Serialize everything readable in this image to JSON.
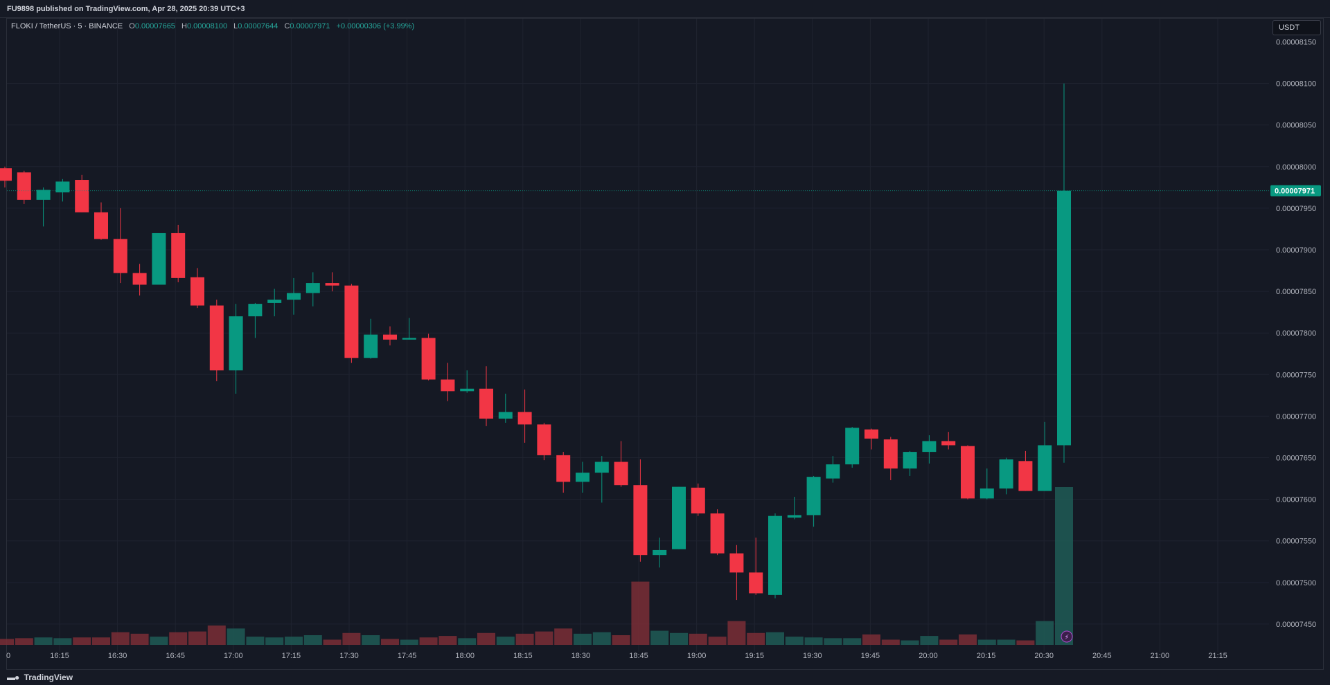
{
  "header": {
    "published_text": "FU9898 published on TradingView.com, Apr 28, 2025 20:39 UTC+3"
  },
  "legend": {
    "symbol": "FLOKI / TetherUS · 5 · BINANCE",
    "open_label": "O",
    "open": "0.00007665",
    "high_label": "H",
    "high": "0.00008100",
    "low_label": "L",
    "low": "0.00007644",
    "close_label": "C",
    "close": "0.00007971",
    "change": "+0.00000306 (+3.99%)"
  },
  "currency_button": "USDT",
  "footer": {
    "brand": "TradingView",
    "logo_icon": "tradingview-logo-icon"
  },
  "colors": {
    "up": "#089981",
    "down": "#f23645",
    "background": "#151924",
    "grid": "#1f2330",
    "text": "#b2b5be"
  },
  "chart_data": {
    "type": "candlestick",
    "symbol": "FLOKI / TetherUS",
    "interval": "5",
    "exchange": "BINANCE",
    "quote_currency": "USDT",
    "last_price": 7.971e-05,
    "last_price_label": "0.00007971",
    "x_tick_labels": [
      "16:15",
      "16:30",
      "16:45",
      "17:00",
      "17:15",
      "17:30",
      "17:45",
      "18:00",
      "18:15",
      "18:30",
      "18:45",
      "19:00",
      "19:15",
      "19:30",
      "19:45",
      "20:00",
      "20:15",
      "20:30",
      "20:45",
      "21:00",
      "21:15"
    ],
    "left_edge_tick_label": "0",
    "y_tick_labels": [
      "0.00007450",
      "0.00007500",
      "0.00007550",
      "0.00007600",
      "0.00007650",
      "0.00007700",
      "0.00007750",
      "0.00007800",
      "0.00007850",
      "0.00007900",
      "0.00007950",
      "0.00008000",
      "0.00008050",
      "0.00008100"
    ],
    "y_top_partial_label": "0.00008150",
    "ylim": [
      7.4175e-05,
      8.1612e-05
    ],
    "grid": true,
    "price_scale_position": "right",
    "candles": [
      {
        "t": "16:05",
        "o": 7.998e-05,
        "h": 8e-05,
        "l": 7.975e-05,
        "c": 7.983e-05
      },
      {
        "t": "16:10",
        "o": 7.993e-05,
        "h": 7.995e-05,
        "l": 7.955e-05,
        "c": 7.96e-05
      },
      {
        "t": "16:15",
        "o": 7.96e-05,
        "h": 7.975e-05,
        "l": 7.928e-05,
        "c": 7.972e-05
      },
      {
        "t": "16:20",
        "o": 7.969e-05,
        "h": 7.985e-05,
        "l": 7.958e-05,
        "c": 7.982e-05
      },
      {
        "t": "16:25",
        "o": 7.984e-05,
        "h": 7.99e-05,
        "l": 7.945e-05,
        "c": 7.945e-05
      },
      {
        "t": "16:30",
        "o": 7.945e-05,
        "h": 7.957e-05,
        "l": 7.912e-05,
        "c": 7.913e-05
      },
      {
        "t": "16:35",
        "o": 7.913e-05,
        "h": 7.95e-05,
        "l": 7.86e-05,
        "c": 7.872e-05
      },
      {
        "t": "16:40",
        "o": 7.872e-05,
        "h": 7.883e-05,
        "l": 7.845e-05,
        "c": 7.858e-05
      },
      {
        "t": "16:45",
        "o": 7.858e-05,
        "h": 7.92e-05,
        "l": 7.858e-05,
        "c": 7.92e-05
      },
      {
        "t": "16:50",
        "o": 7.92e-05,
        "h": 7.93e-05,
        "l": 7.861e-05,
        "c": 7.866e-05
      },
      {
        "t": "16:55",
        "o": 7.867e-05,
        "h": 7.878e-05,
        "l": 7.83e-05,
        "c": 7.833e-05
      },
      {
        "t": "17:00",
        "o": 7.833e-05,
        "h": 7.84e-05,
        "l": 7.742e-05,
        "c": 7.755e-05
      },
      {
        "t": "17:05",
        "o": 7.755e-05,
        "h": 7.835e-05,
        "l": 7.727e-05,
        "c": 7.82e-05
      },
      {
        "t": "17:10",
        "o": 7.82e-05,
        "h": 7.836e-05,
        "l": 7.794e-05,
        "c": 7.835e-05
      },
      {
        "t": "17:15",
        "o": 7.836e-05,
        "h": 7.853e-05,
        "l": 7.82e-05,
        "c": 7.84e-05
      },
      {
        "t": "17:20",
        "o": 7.84e-05,
        "h": 7.866e-05,
        "l": 7.822e-05,
        "c": 7.848e-05
      },
      {
        "t": "17:25",
        "o": 7.848e-05,
        "h": 7.873e-05,
        "l": 7.832e-05,
        "c": 7.86e-05
      },
      {
        "t": "17:30",
        "o": 7.86e-05,
        "h": 7.873e-05,
        "l": 7.85e-05,
        "c": 7.857e-05
      },
      {
        "t": "17:35",
        "o": 7.857e-05,
        "h": 7.859e-05,
        "l": 7.764e-05,
        "c": 7.77e-05
      },
      {
        "t": "17:40",
        "o": 7.77e-05,
        "h": 7.817e-05,
        "l": 7.769e-05,
        "c": 7.798e-05
      },
      {
        "t": "17:45",
        "o": 7.798e-05,
        "h": 7.808e-05,
        "l": 7.785e-05,
        "c": 7.792e-05
      },
      {
        "t": "17:50",
        "o": 7.792e-05,
        "h": 7.818e-05,
        "l": 7.792e-05,
        "c": 7.794e-05
      },
      {
        "t": "17:55",
        "o": 7.794e-05,
        "h": 7.799e-05,
        "l": 7.743e-05,
        "c": 7.744e-05
      },
      {
        "t": "18:00",
        "o": 7.744e-05,
        "h": 7.764e-05,
        "l": 7.718e-05,
        "c": 7.73e-05
      },
      {
        "t": "18:05",
        "o": 7.73e-05,
        "h": 7.755e-05,
        "l": 7.728e-05,
        "c": 7.733e-05
      },
      {
        "t": "18:10",
        "o": 7.733e-05,
        "h": 7.76e-05,
        "l": 7.688e-05,
        "c": 7.697e-05
      },
      {
        "t": "18:15",
        "o": 7.697e-05,
        "h": 7.727e-05,
        "l": 7.692e-05,
        "c": 7.705e-05
      },
      {
        "t": "18:20",
        "o": 7.705e-05,
        "h": 7.732e-05,
        "l": 7.668e-05,
        "c": 7.69e-05
      },
      {
        "t": "18:25",
        "o": 7.69e-05,
        "h": 7.692e-05,
        "l": 7.647e-05,
        "c": 7.653e-05
      },
      {
        "t": "18:30",
        "o": 7.653e-05,
        "h": 7.657e-05,
        "l": 7.608e-05,
        "c": 7.621e-05
      },
      {
        "t": "18:35",
        "o": 7.621e-05,
        "h": 7.645e-05,
        "l": 7.608e-05,
        "c": 7.632e-05
      },
      {
        "t": "18:40",
        "o": 7.632e-05,
        "h": 7.652e-05,
        "l": 7.596e-05,
        "c": 7.645e-05
      },
      {
        "t": "18:45",
        "o": 7.645e-05,
        "h": 7.67e-05,
        "l": 7.615e-05,
        "c": 7.617e-05
      },
      {
        "t": "18:50",
        "o": 7.617e-05,
        "h": 7.648e-05,
        "l": 7.525e-05,
        "c": 7.533e-05
      },
      {
        "t": "18:55",
        "o": 7.533e-05,
        "h": 7.554e-05,
        "l": 7.518e-05,
        "c": 7.539e-05
      },
      {
        "t": "19:00",
        "o": 7.54e-05,
        "h": 7.615e-05,
        "l": 7.54e-05,
        "c": 7.615e-05
      },
      {
        "t": "19:05",
        "o": 7.614e-05,
        "h": 7.619e-05,
        "l": 7.58e-05,
        "c": 7.583e-05
      },
      {
        "t": "19:10",
        "o": 7.583e-05,
        "h": 7.588e-05,
        "l": 7.533e-05,
        "c": 7.535e-05
      },
      {
        "t": "19:15",
        "o": 7.535e-05,
        "h": 7.545e-05,
        "l": 7.479e-05,
        "c": 7.512e-05
      },
      {
        "t": "19:20",
        "o": 7.512e-05,
        "h": 7.554e-05,
        "l": 7.485e-05,
        "c": 7.487e-05
      },
      {
        "t": "19:25",
        "o": 7.485e-05,
        "h": 7.583e-05,
        "l": 7.481e-05,
        "c": 7.58e-05
      },
      {
        "t": "19:30",
        "o": 7.578e-05,
        "h": 7.603e-05,
        "l": 7.576e-05,
        "c": 7.581e-05
      },
      {
        "t": "19:35",
        "o": 7.581e-05,
        "h": 7.628e-05,
        "l": 7.567e-05,
        "c": 7.627e-05
      },
      {
        "t": "19:40",
        "o": 7.625e-05,
        "h": 7.652e-05,
        "l": 7.62e-05,
        "c": 7.642e-05
      },
      {
        "t": "19:45",
        "o": 7.642e-05,
        "h": 7.687e-05,
        "l": 7.638e-05,
        "c": 7.686e-05
      },
      {
        "t": "19:50",
        "o": 7.684e-05,
        "h": 7.685e-05,
        "l": 7.66e-05,
        "c": 7.673e-05
      },
      {
        "t": "19:55",
        "o": 7.672e-05,
        "h": 7.675e-05,
        "l": 7.623e-05,
        "c": 7.637e-05
      },
      {
        "t": "20:00",
        "o": 7.637e-05,
        "h": 7.658e-05,
        "l": 7.628e-05,
        "c": 7.657e-05
      },
      {
        "t": "20:05",
        "o": 7.657e-05,
        "h": 7.677e-05,
        "l": 7.643e-05,
        "c": 7.67e-05
      },
      {
        "t": "20:10",
        "o": 7.67e-05,
        "h": 7.681e-05,
        "l": 7.66e-05,
        "c": 7.665e-05
      },
      {
        "t": "20:15",
        "o": 7.664e-05,
        "h": 7.665e-05,
        "l": 7.6e-05,
        "c": 7.601e-05
      },
      {
        "t": "20:20",
        "o": 7.601e-05,
        "h": 7.637e-05,
        "l": 7.6e-05,
        "c": 7.613e-05
      },
      {
        "t": "20:25",
        "o": 7.613e-05,
        "h": 7.65e-05,
        "l": 7.606e-05,
        "c": 7.648e-05
      },
      {
        "t": "20:30",
        "o": 7.646e-05,
        "h": 7.658e-05,
        "l": 7.61e-05,
        "c": 7.61e-05
      },
      {
        "t": "20:35",
        "o": 7.61e-05,
        "h": 7.693e-05,
        "l": 7.61e-05,
        "c": 7.665e-05
      },
      {
        "t": "20:40",
        "o": 7.665e-05,
        "h": 8.1e-05,
        "l": 7.644e-05,
        "c": 7.971e-05
      }
    ],
    "volume_relative": [
      0.08,
      0.09,
      0.1,
      0.09,
      0.1,
      0.1,
      0.17,
      0.15,
      0.11,
      0.17,
      0.18,
      0.26,
      0.22,
      0.11,
      0.1,
      0.11,
      0.13,
      0.07,
      0.16,
      0.13,
      0.08,
      0.07,
      0.1,
      0.12,
      0.09,
      0.16,
      0.11,
      0.15,
      0.18,
      0.22,
      0.15,
      0.17,
      0.13,
      0.85,
      0.19,
      0.16,
      0.15,
      0.11,
      0.32,
      0.16,
      0.17,
      0.11,
      0.1,
      0.09,
      0.09,
      0.14,
      0.07,
      0.06,
      0.12,
      0.07,
      0.14,
      0.07,
      0.07,
      0.06,
      0.32,
      2.12
    ]
  }
}
